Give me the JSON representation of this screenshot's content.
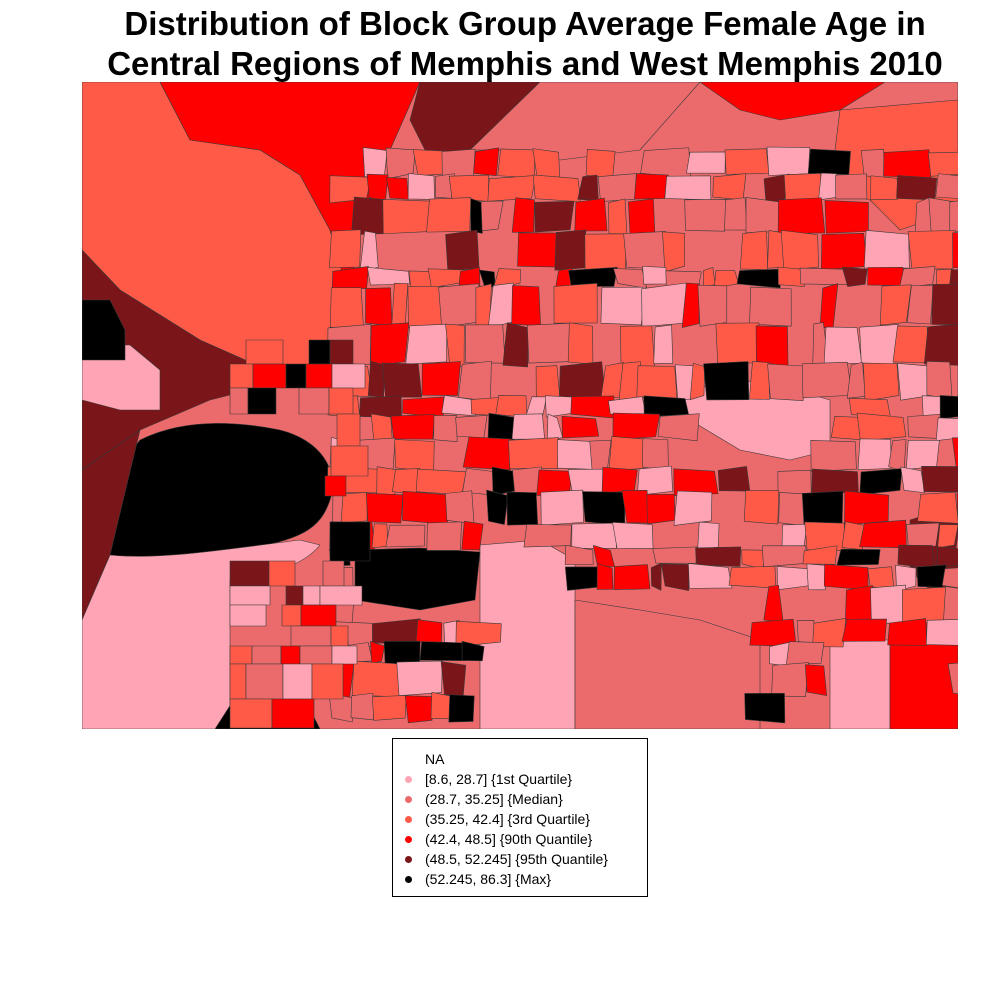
{
  "title": {
    "line1": "Distribution of Block Group Average Female Age in",
    "line2": "Central Regions of Memphis and West Memphis 2010"
  },
  "colors": {
    "na": "#ffffff",
    "q1": "#ffa4b5",
    "median": "#eb6a6c",
    "q3": "#ff5a48",
    "p90": "#ff0000",
    "p95": "#7a1519",
    "max": "#000000",
    "border": "#3a3a3a"
  },
  "legend": {
    "items": [
      {
        "label": "NA",
        "color_key": "na"
      },
      {
        "label": "[8.6, 28.7] {1st Quartile}",
        "color_key": "q1"
      },
      {
        "label": "(28.7, 35.25] {Median}",
        "color_key": "median"
      },
      {
        "label": "(35.25, 42.4] {3rd Quartile}",
        "color_key": "q3"
      },
      {
        "label": "(42.4, 48.5] {90th Quantile}",
        "color_key": "p90"
      },
      {
        "label": "(48.5, 52.245] {95th Quantile}",
        "color_key": "p95"
      },
      {
        "label": "(52.245, 86.3] {Max}",
        "color_key": "max"
      }
    ]
  }
}
